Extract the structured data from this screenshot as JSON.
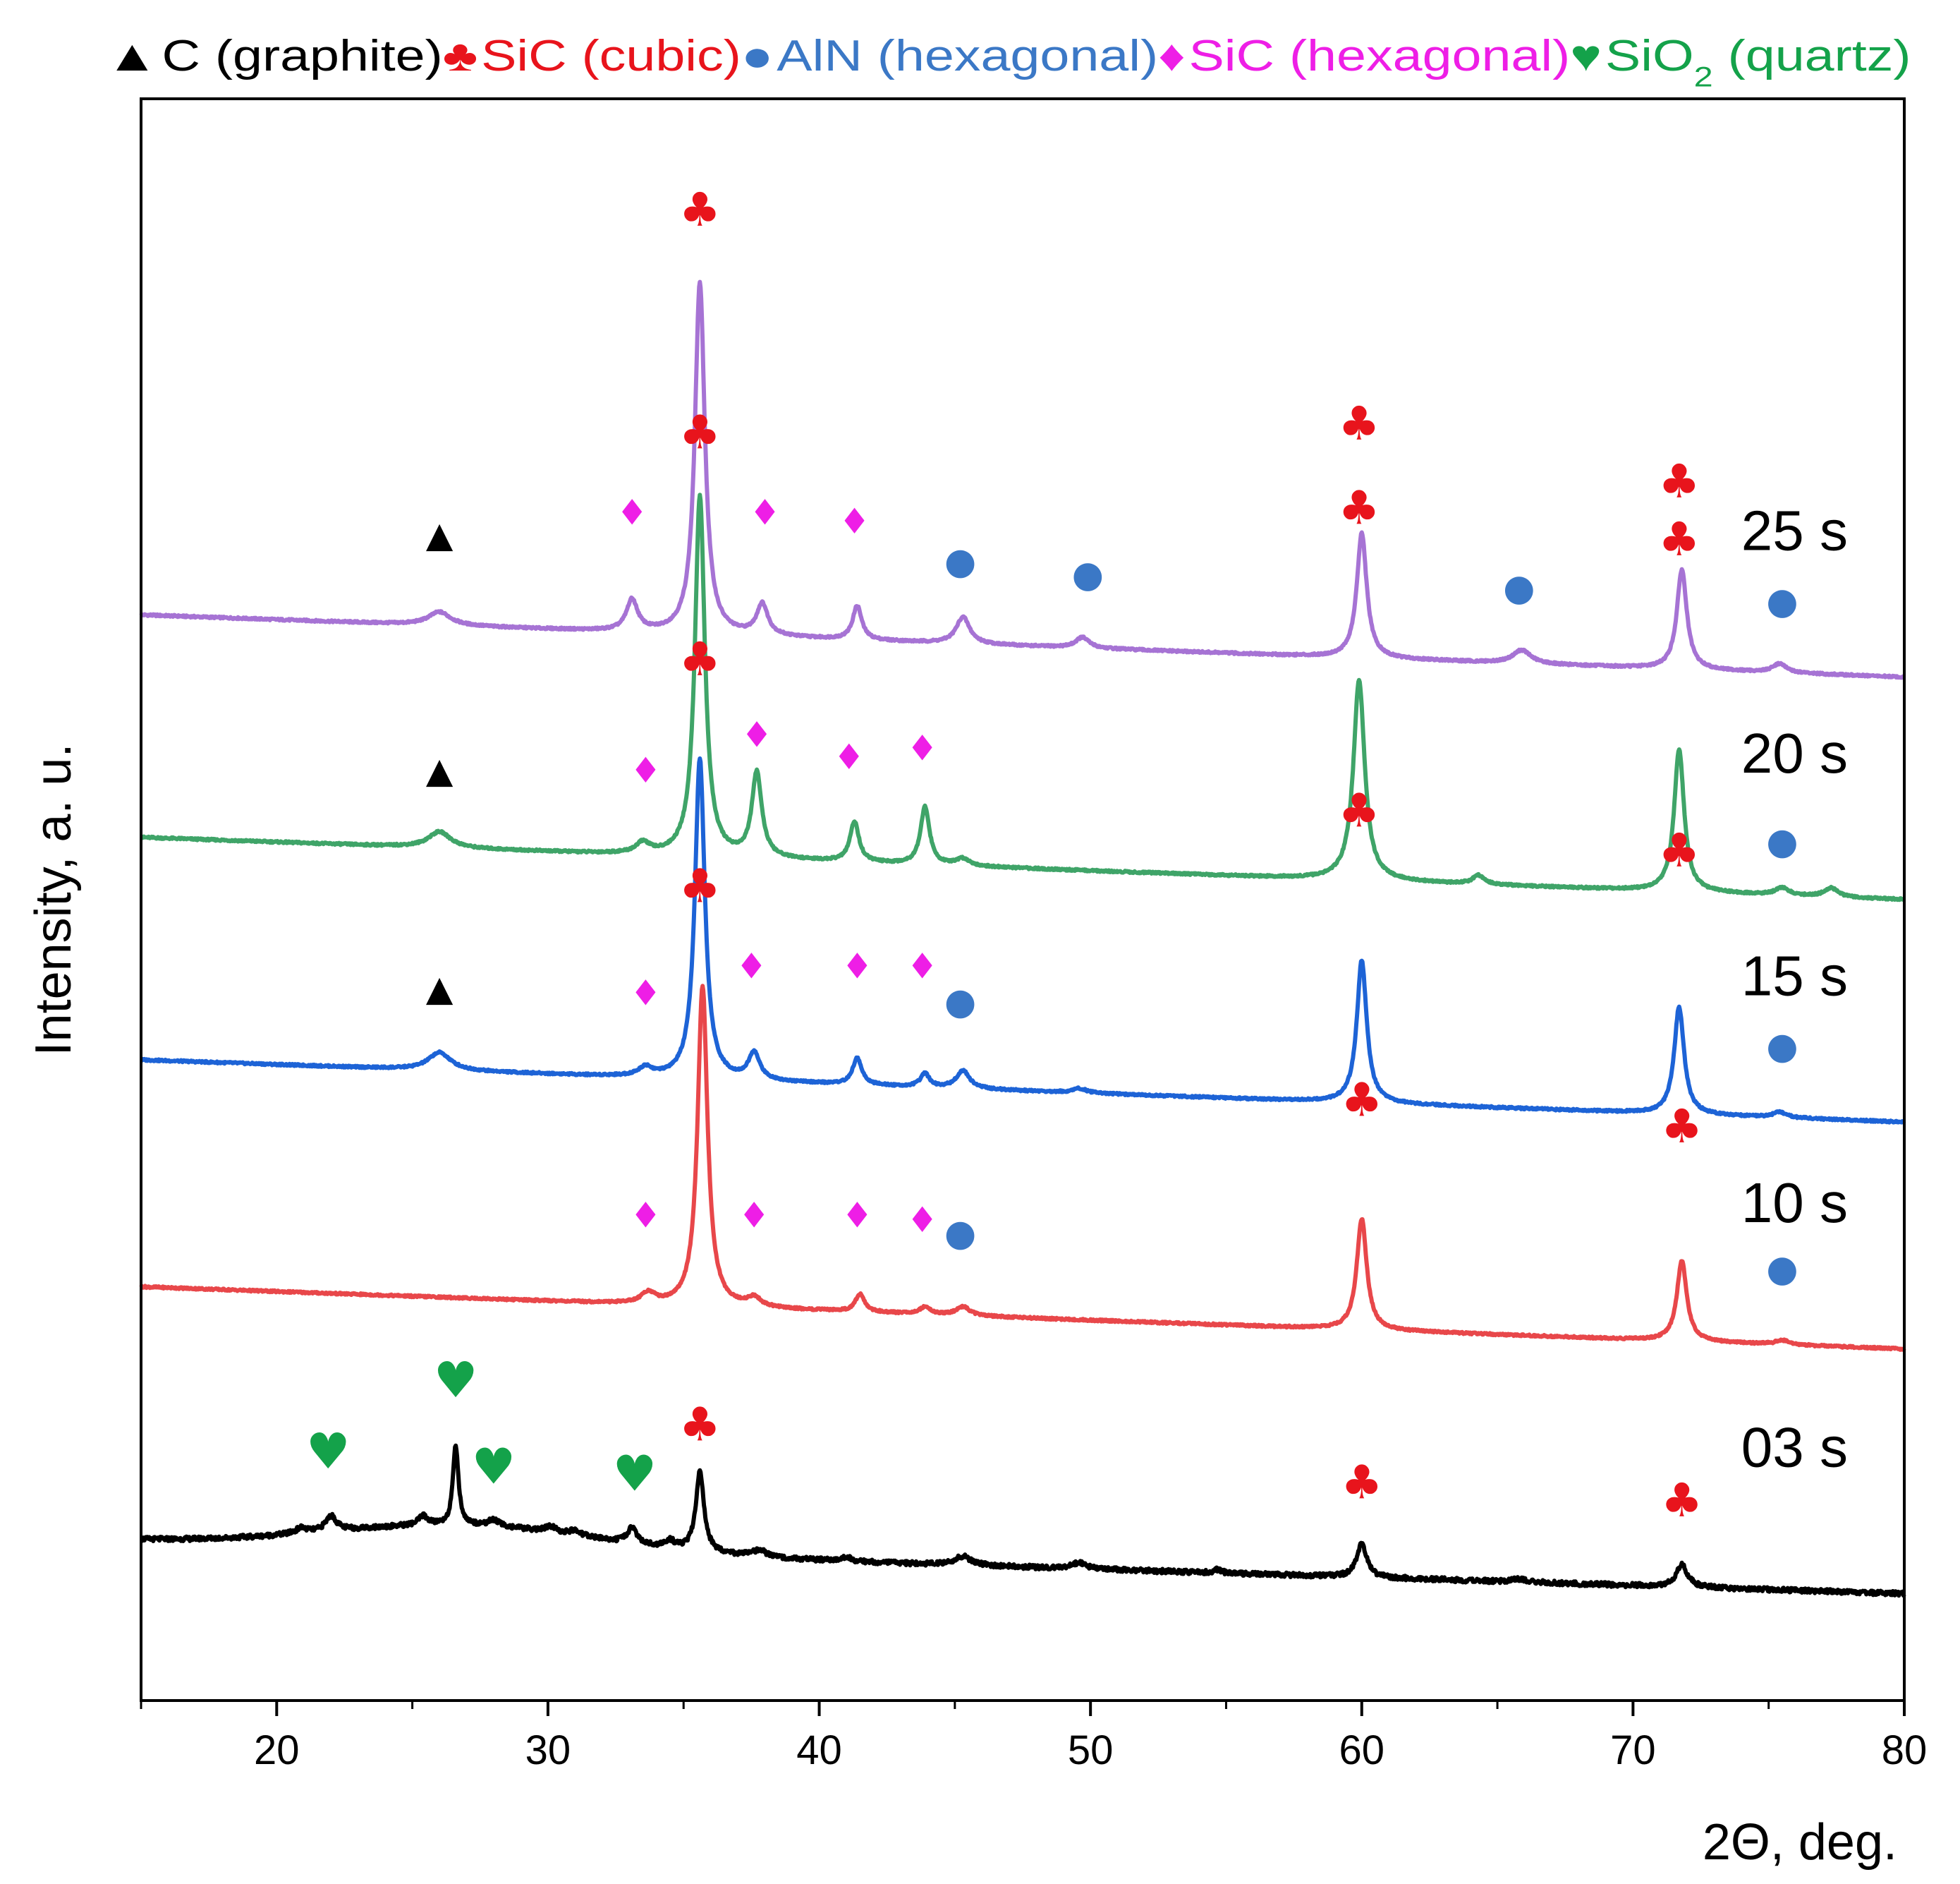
{
  "chart_data": {
    "type": "line",
    "title": "",
    "xlabel": "2Θ, deg.",
    "ylabel": "Intensity, a. u.",
    "xlim": [
      15,
      80
    ],
    "xticks": [
      20,
      30,
      40,
      50,
      60,
      70,
      80
    ],
    "legend": [
      {
        "symbol": "▲",
        "label": "C (graphite)",
        "color": "#000000",
        "phase": "graphite"
      },
      {
        "symbol": "♣",
        "label": "SiC (cubic)",
        "color": "#e8141c",
        "phase": "sic_cubic"
      },
      {
        "symbol": "●",
        "label": "AlN (hexagonal)",
        "color": "#3b78c6",
        "phase": "aln_hex"
      },
      {
        "symbol": "♦",
        "label": "SiC (hexagonal)",
        "color": "#ee1ee6",
        "phase": "sic_hex"
      },
      {
        "symbol": "♥",
        "label": "SiO",
        "sub": "2",
        "label_tail": " (quartz)",
        "color": "#14a24a",
        "phase": "sio2"
      }
    ],
    "series": [
      {
        "name": "25 s",
        "color": "#a673d4",
        "baseline_start": 9.6,
        "baseline_end": 8.9,
        "peaks": [
          {
            "x": 26.0,
            "h": 0.15,
            "w": 0.5
          },
          {
            "x": 33.1,
            "h": 0.35,
            "w": 0.25
          },
          {
            "x": 35.6,
            "h": 3.95,
            "w": 0.22
          },
          {
            "x": 37.9,
            "h": 0.35,
            "w": 0.25
          },
          {
            "x": 41.4,
            "h": 0.38,
            "w": 0.2
          },
          {
            "x": 45.3,
            "h": 0.3,
            "w": 0.3
          },
          {
            "x": 49.7,
            "h": 0.12,
            "w": 0.3
          },
          {
            "x": 60.0,
            "h": 1.4,
            "w": 0.22
          },
          {
            "x": 65.9,
            "h": 0.15,
            "w": 0.4
          },
          {
            "x": 71.8,
            "h": 1.12,
            "w": 0.22
          },
          {
            "x": 75.4,
            "h": 0.1,
            "w": 0.3
          }
        ],
        "markers": [
          {
            "phase": "graphite",
            "x": 26.0,
            "y": 10.5
          },
          {
            "phase": "sic_hex",
            "x": 33.1,
            "y": 10.75
          },
          {
            "phase": "sic_cubic",
            "x": 35.6,
            "y": 14.15
          },
          {
            "phase": "sic_hex",
            "x": 38.0,
            "y": 10.75
          },
          {
            "phase": "sic_hex",
            "x": 41.3,
            "y": 10.65
          },
          {
            "phase": "aln_hex",
            "x": 45.2,
            "y": 10.2
          },
          {
            "phase": "aln_hex",
            "x": 49.9,
            "y": 10.05
          },
          {
            "phase": "sic_cubic",
            "x": 59.9,
            "y": 11.75
          },
          {
            "phase": "aln_hex",
            "x": 65.8,
            "y": 9.9
          },
          {
            "phase": "sic_cubic",
            "x": 71.7,
            "y": 11.1
          },
          {
            "phase": "aln_hex",
            "x": 75.5,
            "y": 9.75
          }
        ]
      },
      {
        "name": "20 s",
        "color": "#3fa468",
        "baseline_start": 7.1,
        "baseline_end": 6.4,
        "peaks": [
          {
            "x": 26.0,
            "h": 0.18,
            "w": 0.5
          },
          {
            "x": 33.5,
            "h": 0.12,
            "w": 0.3
          },
          {
            "x": 35.6,
            "h": 4.05,
            "w": 0.22
          },
          {
            "x": 37.7,
            "h": 0.95,
            "w": 0.22
          },
          {
            "x": 41.3,
            "h": 0.45,
            "w": 0.2
          },
          {
            "x": 43.9,
            "h": 0.65,
            "w": 0.2
          },
          {
            "x": 45.3,
            "h": 0.08,
            "w": 0.3
          },
          {
            "x": 59.9,
            "h": 2.25,
            "w": 0.25
          },
          {
            "x": 64.3,
            "h": 0.1,
            "w": 0.25
          },
          {
            "x": 71.7,
            "h": 1.6,
            "w": 0.22
          },
          {
            "x": 75.5,
            "h": 0.08,
            "w": 0.3
          },
          {
            "x": 77.3,
            "h": 0.1,
            "w": 0.3
          }
        ],
        "markers": [
          {
            "phase": "graphite",
            "x": 26.0,
            "y": 7.85
          },
          {
            "phase": "sic_hex",
            "x": 33.6,
            "y": 7.85
          },
          {
            "phase": "sic_cubic",
            "x": 35.6,
            "y": 11.65
          },
          {
            "phase": "sic_hex",
            "x": 37.7,
            "y": 8.25
          },
          {
            "phase": "sic_hex",
            "x": 41.1,
            "y": 8.0
          },
          {
            "phase": "sic_hex",
            "x": 43.8,
            "y": 8.1
          },
          {
            "phase": "sic_cubic",
            "x": 59.9,
            "y": 10.8
          },
          {
            "phase": "sic_cubic",
            "x": 71.7,
            "y": 10.45
          },
          {
            "phase": "aln_hex",
            "x": 75.5,
            "y": 7.05
          }
        ]
      },
      {
        "name": "15 s",
        "color": "#1d63d6",
        "baseline_start": 4.6,
        "baseline_end": 3.9,
        "peaks": [
          {
            "x": 26.0,
            "h": 0.2,
            "w": 0.5
          },
          {
            "x": 33.6,
            "h": 0.1,
            "w": 0.3
          },
          {
            "x": 35.6,
            "h": 3.6,
            "w": 0.22
          },
          {
            "x": 37.6,
            "h": 0.3,
            "w": 0.25
          },
          {
            "x": 41.4,
            "h": 0.3,
            "w": 0.2
          },
          {
            "x": 43.9,
            "h": 0.15,
            "w": 0.2
          },
          {
            "x": 45.3,
            "h": 0.2,
            "w": 0.3
          },
          {
            "x": 49.6,
            "h": 0.05,
            "w": 0.3
          },
          {
            "x": 60.0,
            "h": 1.6,
            "w": 0.22
          },
          {
            "x": 71.7,
            "h": 1.2,
            "w": 0.22
          },
          {
            "x": 75.4,
            "h": 0.06,
            "w": 0.3
          }
        ],
        "markers": [
          {
            "phase": "graphite",
            "x": 26.0,
            "y": 5.4
          },
          {
            "phase": "sic_hex",
            "x": 33.6,
            "y": 5.35
          },
          {
            "phase": "sic_cubic",
            "x": 35.6,
            "y": 9.1
          },
          {
            "phase": "sic_hex",
            "x": 37.5,
            "y": 5.65
          },
          {
            "phase": "sic_hex",
            "x": 41.4,
            "y": 5.65
          },
          {
            "phase": "sic_hex",
            "x": 43.8,
            "y": 5.65
          },
          {
            "phase": "aln_hex",
            "x": 45.2,
            "y": 5.25
          },
          {
            "phase": "sic_cubic",
            "x": 59.9,
            "y": 7.4
          },
          {
            "phase": "sic_cubic",
            "x": 71.7,
            "y": 6.95
          },
          {
            "phase": "aln_hex",
            "x": 75.5,
            "y": 4.75
          }
        ]
      },
      {
        "name": "10 s",
        "color": "#e8474a",
        "baseline_start": 2.05,
        "baseline_end": 1.35,
        "peaks": [
          {
            "x": 33.7,
            "h": 0.12,
            "w": 0.3
          },
          {
            "x": 35.7,
            "h": 3.6,
            "w": 0.22
          },
          {
            "x": 37.6,
            "h": 0.1,
            "w": 0.3
          },
          {
            "x": 41.5,
            "h": 0.2,
            "w": 0.2
          },
          {
            "x": 43.9,
            "h": 0.08,
            "w": 0.25
          },
          {
            "x": 45.3,
            "h": 0.1,
            "w": 0.3
          },
          {
            "x": 60.0,
            "h": 1.25,
            "w": 0.22
          },
          {
            "x": 71.8,
            "h": 0.9,
            "w": 0.22
          },
          {
            "x": 75.5,
            "h": 0.05,
            "w": 0.3
          }
        ],
        "markers": [
          {
            "phase": "sic_hex",
            "x": 33.6,
            "y": 2.85
          },
          {
            "phase": "sic_cubic",
            "x": 35.6,
            "y": 6.55
          },
          {
            "phase": "sic_hex",
            "x": 37.6,
            "y": 2.85
          },
          {
            "phase": "sic_hex",
            "x": 41.4,
            "y": 2.85
          },
          {
            "phase": "sic_hex",
            "x": 43.8,
            "y": 2.8
          },
          {
            "phase": "aln_hex",
            "x": 45.2,
            "y": 2.65
          },
          {
            "phase": "sic_cubic",
            "x": 60.0,
            "y": 4.15
          },
          {
            "phase": "sic_cubic",
            "x": 71.8,
            "y": 3.85
          },
          {
            "phase": "aln_hex",
            "x": 75.5,
            "y": 2.25
          }
        ]
      },
      {
        "name": "03 s",
        "color": "#000000",
        "baseline_start": -0.8,
        "baseline_end": -1.4,
        "hump": {
          "x": 27.0,
          "h": 0.28,
          "w": 7.0
        },
        "peaks": [
          {
            "x": 20.9,
            "h": 0.06,
            "w": 0.25
          },
          {
            "x": 22.0,
            "h": 0.17,
            "w": 0.25
          },
          {
            "x": 25.4,
            "h": 0.1,
            "w": 0.2
          },
          {
            "x": 26.6,
            "h": 0.9,
            "w": 0.12
          },
          {
            "x": 28.0,
            "h": 0.07,
            "w": 0.25
          },
          {
            "x": 30.1,
            "h": 0.06,
            "w": 0.25
          },
          {
            "x": 31.0,
            "h": 0.05,
            "w": 0.25
          },
          {
            "x": 33.1,
            "h": 0.18,
            "w": 0.2
          },
          {
            "x": 34.5,
            "h": 0.08,
            "w": 0.2
          },
          {
            "x": 35.6,
            "h": 0.9,
            "w": 0.18
          },
          {
            "x": 37.8,
            "h": 0.07,
            "w": 0.3
          },
          {
            "x": 41.0,
            "h": 0.05,
            "w": 0.2
          },
          {
            "x": 45.3,
            "h": 0.1,
            "w": 0.35
          },
          {
            "x": 49.6,
            "h": 0.07,
            "w": 0.3
          },
          {
            "x": 54.7,
            "h": 0.04,
            "w": 0.15
          },
          {
            "x": 60.0,
            "h": 0.38,
            "w": 0.22
          },
          {
            "x": 65.8,
            "h": 0.03,
            "w": 0.4
          },
          {
            "x": 71.8,
            "h": 0.25,
            "w": 0.25
          }
        ],
        "markers": [
          {
            "phase": "sio2",
            "x": 21.9,
            "y": 0.2
          },
          {
            "phase": "sio2",
            "x": 26.6,
            "y": 1.0
          },
          {
            "phase": "sio2",
            "x": 28.0,
            "y": 0.03
          },
          {
            "phase": "sio2",
            "x": 33.2,
            "y": -0.05
          },
          {
            "phase": "sic_cubic",
            "x": 35.6,
            "y": 0.5
          },
          {
            "phase": "sic_cubic",
            "x": 60.0,
            "y": -0.15
          },
          {
            "phase": "sic_cubic",
            "x": 71.8,
            "y": -0.35
          }
        ]
      }
    ]
  }
}
